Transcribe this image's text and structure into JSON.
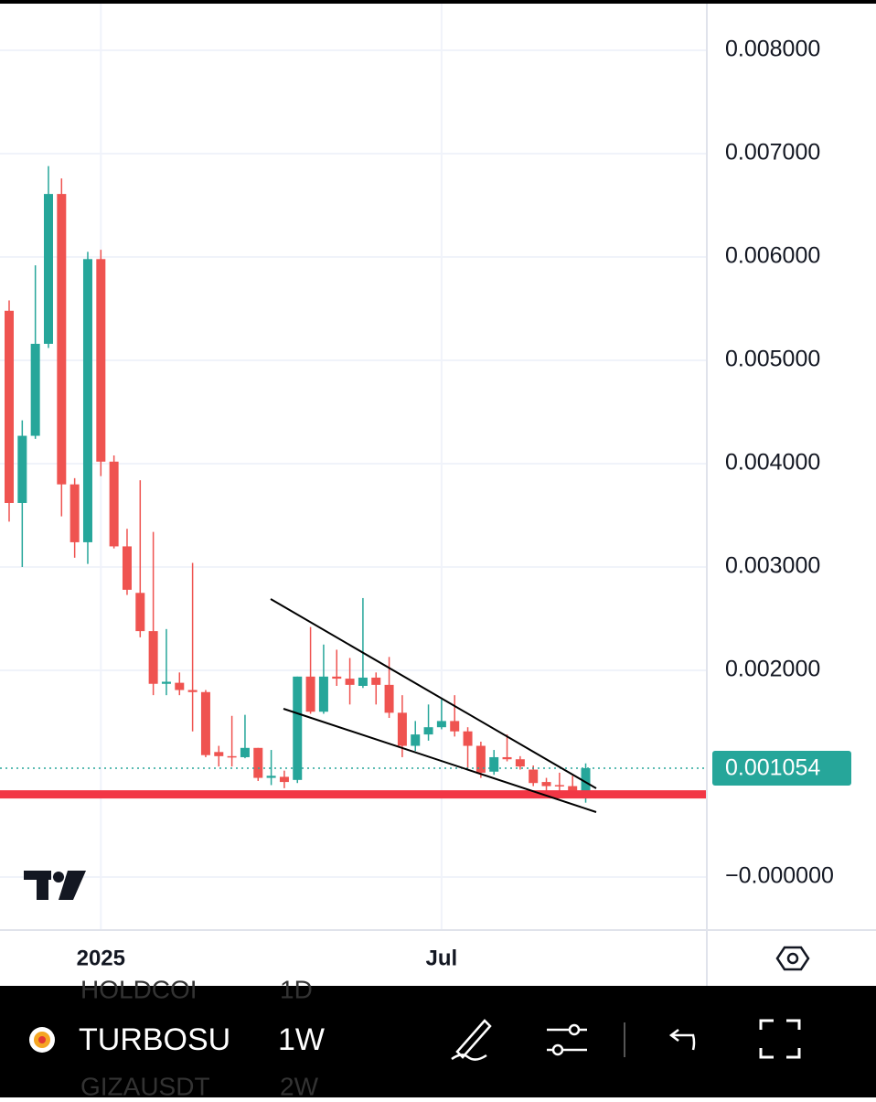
{
  "chart_data": {
    "type": "candlestick",
    "categories": [
      null,
      null,
      null,
      null,
      null,
      null,
      null,
      "2025",
      null,
      null,
      null,
      null,
      null,
      null,
      null,
      null,
      null,
      null,
      null,
      null,
      null,
      null,
      null,
      null,
      null,
      null,
      null,
      null,
      null,
      null,
      null,
      null,
      null,
      "Jul",
      null,
      null,
      null,
      null,
      null,
      null,
      null,
      null,
      null,
      null,
      null
    ],
    "open": [
      0.00548,
      0.00362,
      0.00427,
      0.00516,
      0.00661,
      0.0038,
      0.00324,
      0.00598,
      0.00402,
      0.0032,
      0.00275,
      0.00238,
      0.00187,
      0.00188,
      0.00181,
      0.00179,
      0.00121,
      0.00117,
      0.00116,
      0.00125,
      0.00096,
      0.00097,
      0.00094,
      0.00194,
      0.0016,
      0.00194,
      0.00192,
      0.00185,
      0.00193,
      0.00186,
      0.00159,
      0.00127,
      0.00138,
      0.00145,
      0.00151,
      0.00141,
      0.00127,
      0.00102,
      0.00116,
      0.00114,
      0.00104,
      0.00092,
      0.00089,
      0.00088,
      0.00082
    ],
    "high": [
      0.00558,
      0.00442,
      0.00592,
      0.00688,
      0.00676,
      0.00386,
      0.00605,
      0.00607,
      0.00408,
      0.00337,
      0.00384,
      0.00334,
      0.0024,
      0.00198,
      0.00304,
      0.00181,
      0.00127,
      0.00156,
      0.00157,
      0.00125,
      0.00123,
      0.00103,
      0.00194,
      0.00242,
      0.00225,
      0.0022,
      0.00212,
      0.0027,
      0.00198,
      0.00213,
      0.00176,
      0.00151,
      0.00167,
      0.00172,
      0.00176,
      0.00145,
      0.00131,
      0.00123,
      0.00138,
      0.00117,
      0.00108,
      0.00096,
      0.00101,
      0.00098,
      0.0011
    ],
    "low": [
      0.00344,
      0.003,
      0.00424,
      0.00512,
      0.00349,
      0.00309,
      0.00303,
      0.00388,
      0.00318,
      0.00273,
      0.00232,
      0.00176,
      0.00176,
      0.00176,
      0.00141,
      0.00116,
      0.00107,
      0.00107,
      0.00115,
      0.00093,
      0.00089,
      0.00086,
      0.00091,
      0.00158,
      0.00158,
      0.00185,
      0.00167,
      0.00183,
      0.00167,
      0.00154,
      0.00116,
      0.00122,
      0.00132,
      0.00143,
      0.00136,
      0.00105,
      0.00096,
      0.00099,
      0.00112,
      0.00104,
      0.00088,
      0.00083,
      0.00081,
      0.00079,
      0.00072
    ],
    "close": [
      0.00362,
      0.00427,
      0.00516,
      0.00661,
      0.0038,
      0.00324,
      0.00598,
      0.00402,
      0.0032,
      0.00278,
      0.00238,
      0.00187,
      0.00189,
      0.00181,
      0.00179,
      0.00118,
      0.00117,
      0.00116,
      0.00125,
      0.00096,
      0.00098,
      0.00092,
      0.00194,
      0.0016,
      0.00194,
      0.00192,
      0.00186,
      0.00193,
      0.00186,
      0.00159,
      0.00127,
      0.00138,
      0.00145,
      0.00151,
      0.00141,
      0.00127,
      0.00101,
      0.00116,
      0.00114,
      0.00107,
      0.00091,
      0.00088,
      0.00088,
      0.00082,
      0.001054
    ],
    "up_color": "#26a69a",
    "down_color": "#ef5350",
    "last_price": 0.001054,
    "support_level": 0.0008,
    "ylim": [
      -0.000504,
      0.008487
    ],
    "yticks": [
      {
        "value": 0.008,
        "label": "0.008000"
      },
      {
        "value": 0.007,
        "label": "0.007000"
      },
      {
        "value": 0.006,
        "label": "0.006000"
      },
      {
        "value": 0.005,
        "label": "0.005000"
      },
      {
        "value": 0.004,
        "label": "0.004000"
      },
      {
        "value": 0.003,
        "label": "0.003000"
      },
      {
        "value": 0.002,
        "label": "0.002000"
      },
      {
        "value": 0,
        "label": "−0.000000"
      }
    ],
    "grid": true
  },
  "toolbar": {
    "symbol": "TURBOSU",
    "interval": "1W",
    "above_symbol": "HOLDCOI",
    "above_interval": "1D",
    "below_symbol": "GIZAUSDT",
    "below_interval": "2W"
  }
}
